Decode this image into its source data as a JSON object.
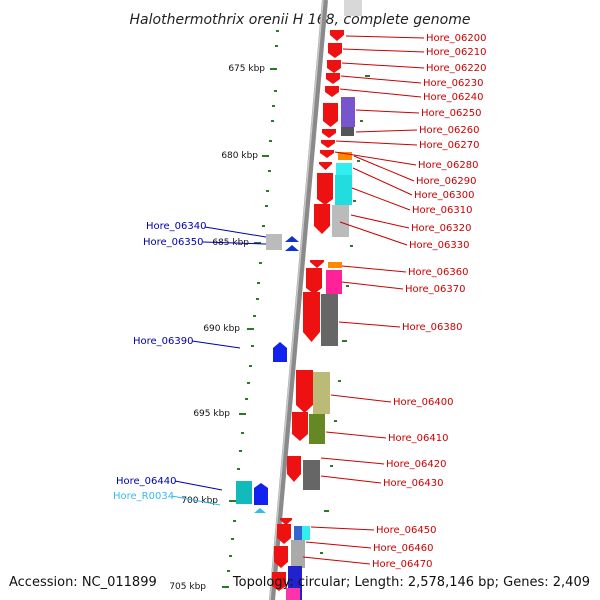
{
  "title": "Halothermothrix orenii H 168, complete genome",
  "footer": {
    "accession": "Accession: NC_011899",
    "summary": "Topology: circular; Length: 2,578,146 bp; Genes: 2,409"
  },
  "colors": {
    "backbone": "#888888",
    "forward_label": "#cc0000",
    "reverse_label": "#0000aa",
    "rna_label": "#33bbee",
    "tick": "#2a7a2a"
  },
  "kbp_marks": [
    "675 kbp",
    "680 kbp",
    "685 kbp",
    "690 kbp",
    "695 kbp",
    "700 kbp",
    "705 kbp"
  ],
  "right_labels": [
    "Hore_06200",
    "Hore_06210",
    "Hore_06220",
    "Hore_06230",
    "Hore_06240",
    "Hore_06250",
    "Hore_06260",
    "Hore_06270",
    "Hore_06280",
    "Hore_06290",
    "Hore_06300",
    "Hore_06310",
    "Hore_06320",
    "Hore_06330",
    "Hore_06360",
    "Hore_06370",
    "Hore_06380",
    "Hore_06400",
    "Hore_06410",
    "Hore_06420",
    "Hore_06430",
    "Hore_06450",
    "Hore_06460",
    "Hore_06470"
  ],
  "left_labels": [
    "Hore_06340",
    "Hore_06350",
    "Hore_06390",
    "Hore_06440",
    "Hore_R0034"
  ]
}
